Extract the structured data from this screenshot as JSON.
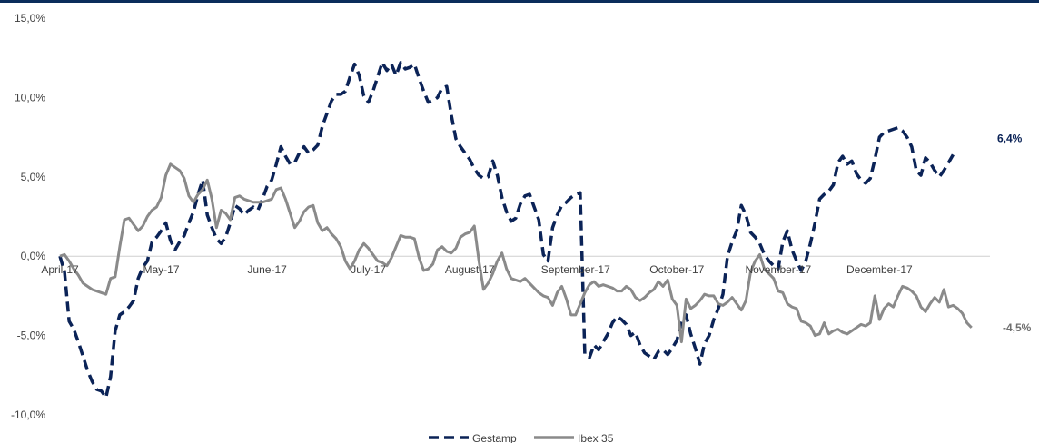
{
  "chart_data": {
    "type": "line",
    "title": "",
    "xlabel": "",
    "ylabel": "",
    "ylim": [
      -10,
      15
    ],
    "yticks": [
      "15,0%",
      "10,0%",
      "5,0%",
      "0,0%",
      "-5,0%",
      "-10,0%"
    ],
    "ytick_values": [
      15,
      10,
      5,
      0,
      -5,
      -10
    ],
    "xticks": [
      "April-17",
      "May-17",
      "June-17",
      "July-17",
      "August-17",
      "September-17",
      "October-17",
      "November-17",
      "December-17"
    ],
    "x_range": [
      0,
      202
    ],
    "xtick_positions": [
      0,
      22,
      45,
      67,
      89,
      112,
      134,
      156,
      178
    ],
    "legend_position": "bottom-center",
    "grid": false,
    "series": [
      {
        "name": "Gestamp",
        "color": "#0b2357",
        "style": "dashed",
        "end_label": "6,4%",
        "values": [
          0.0,
          -1.0,
          -4.1,
          -4.6,
          -5.4,
          -6.3,
          -7.2,
          -7.9,
          -8.4,
          -8.5,
          -8.9,
          -7.6,
          -4.7,
          -3.7,
          -3.5,
          -3.2,
          -2.8,
          -1.4,
          -0.7,
          -0.3,
          0.9,
          1.2,
          1.6,
          2.1,
          1.0,
          0.4,
          0.9,
          1.3,
          2.1,
          2.8,
          3.9,
          4.8,
          2.6,
          1.8,
          1.1,
          0.8,
          1.2,
          2.1,
          3.2,
          3.0,
          2.6,
          2.9,
          3.1,
          2.9,
          3.6,
          4.4,
          4.8,
          5.8,
          6.9,
          6.3,
          5.8,
          5.9,
          6.5,
          6.9,
          6.5,
          6.7,
          7.0,
          8.2,
          9.0,
          9.8,
          10.2,
          10.2,
          10.4,
          11.3,
          12.1,
          11.4,
          10.1,
          9.7,
          10.4,
          11.3,
          12.2,
          11.7,
          12.1,
          11.4,
          12.2,
          11.8,
          11.9,
          12.1,
          11.2,
          10.4,
          9.7,
          9.8,
          10.0,
          10.6,
          10.7,
          8.9,
          7.4,
          6.9,
          6.5,
          6.1,
          5.5,
          5.1,
          4.9,
          5.0,
          6.0,
          5.1,
          3.7,
          2.8,
          2.2,
          2.4,
          3.3,
          3.8,
          3.9,
          3.1,
          2.3,
          0.1,
          -0.3,
          1.8,
          2.6,
          3.2,
          3.4,
          3.7,
          3.9,
          4.0,
          -6.2,
          -6.4,
          -5.6,
          -5.9,
          -5.4,
          -4.9,
          -4.2,
          -3.8,
          -4.0,
          -4.3,
          -5.0,
          -4.8,
          -5.6,
          -6.1,
          -6.3,
          -6.5,
          -6.0,
          -5.9,
          -6.2,
          -5.8,
          -5.3,
          -4.1,
          -3.7,
          -4.9,
          -5.8,
          -6.8,
          -5.5,
          -5.0,
          -4.0,
          -3.3,
          -2.4,
          0.0,
          0.9,
          1.6,
          3.2,
          2.6,
          1.5,
          1.2,
          0.8,
          0.1,
          -0.3,
          -0.6,
          -0.8,
          0.9,
          1.6,
          0.4,
          -0.3,
          -0.9,
          -0.3,
          0.8,
          2.1,
          3.6,
          3.9,
          4.1,
          4.5,
          5.9,
          6.3,
          5.8,
          6.0,
          5.2,
          4.8,
          4.6,
          4.9,
          6.1,
          7.5,
          7.8,
          7.9,
          8.0,
          8.1,
          7.9,
          7.5,
          6.9,
          5.4,
          5.1,
          6.2,
          5.9,
          5.4,
          5.0,
          5.4,
          5.9,
          6.4
        ]
      },
      {
        "name": "Ibex 35",
        "color": "#8a8a8a",
        "style": "solid",
        "end_label": "-4,5%",
        "values": [
          0.0,
          0.1,
          -0.3,
          -0.8,
          -1.2,
          -1.7,
          -1.9,
          -2.1,
          -2.2,
          -2.3,
          -2.4,
          -1.4,
          -1.3,
          0.6,
          2.3,
          2.4,
          2.0,
          1.6,
          1.9,
          2.5,
          2.9,
          3.1,
          3.7,
          5.1,
          5.8,
          5.6,
          5.4,
          4.9,
          3.8,
          3.4,
          3.9,
          4.2,
          4.8,
          3.6,
          1.8,
          2.9,
          2.7,
          2.3,
          3.7,
          3.8,
          3.6,
          3.5,
          3.4,
          3.4,
          3.4,
          3.5,
          3.6,
          4.2,
          4.3,
          3.6,
          2.7,
          1.8,
          2.2,
          2.8,
          3.1,
          3.2,
          2.1,
          1.6,
          1.8,
          1.4,
          1.1,
          0.6,
          -0.3,
          -0.8,
          -0.3,
          0.4,
          0.8,
          0.5,
          0.1,
          -0.3,
          -0.4,
          -0.6,
          -0.1,
          0.6,
          1.3,
          1.2,
          1.2,
          1.1,
          -0.1,
          -0.9,
          -0.8,
          -0.5,
          0.4,
          0.6,
          0.3,
          0.2,
          0.5,
          1.2,
          1.4,
          1.5,
          1.9,
          -0.3,
          -2.1,
          -1.7,
          -1.1,
          -0.3,
          0.2,
          -0.8,
          -1.4,
          -1.5,
          -1.6,
          -1.4,
          -1.7,
          -2.0,
          -2.3,
          -2.5,
          -2.6,
          -3.1,
          -2.3,
          -1.9,
          -2.7,
          -3.7,
          -3.7,
          -3.0,
          -2.3,
          -1.8,
          -1.6,
          -1.9,
          -1.8,
          -1.9,
          -2.0,
          -2.2,
          -2.2,
          -1.9,
          -2.1,
          -2.6,
          -2.8,
          -2.6,
          -2.3,
          -2.1,
          -1.6,
          -1.9,
          -1.5,
          -2.7,
          -3.1,
          -5.4,
          -2.7,
          -3.3,
          -3.1,
          -2.8,
          -2.4,
          -2.5,
          -2.5,
          -3.0,
          -3.1,
          -2.9,
          -2.6,
          -3.0,
          -3.4,
          -2.8,
          -1.0,
          -0.3,
          0.1,
          -0.8,
          -1.1,
          -1.4,
          -2.2,
          -2.3,
          -3.0,
          -3.2,
          -3.3,
          -4.1,
          -4.2,
          -4.4,
          -5.0,
          -4.9,
          -4.2,
          -4.9,
          -4.7,
          -4.6,
          -4.8,
          -4.9,
          -4.7,
          -4.5,
          -4.3,
          -4.4,
          -4.2,
          -2.5,
          -4.0,
          -3.3,
          -3.0,
          -3.2,
          -2.5,
          -1.9,
          -2.0,
          -2.2,
          -2.5,
          -3.2,
          -3.5,
          -3.0,
          -2.6,
          -2.9,
          -2.1,
          -3.2,
          -3.1,
          -3.3,
          -3.6,
          -4.2,
          -4.5
        ]
      }
    ]
  }
}
